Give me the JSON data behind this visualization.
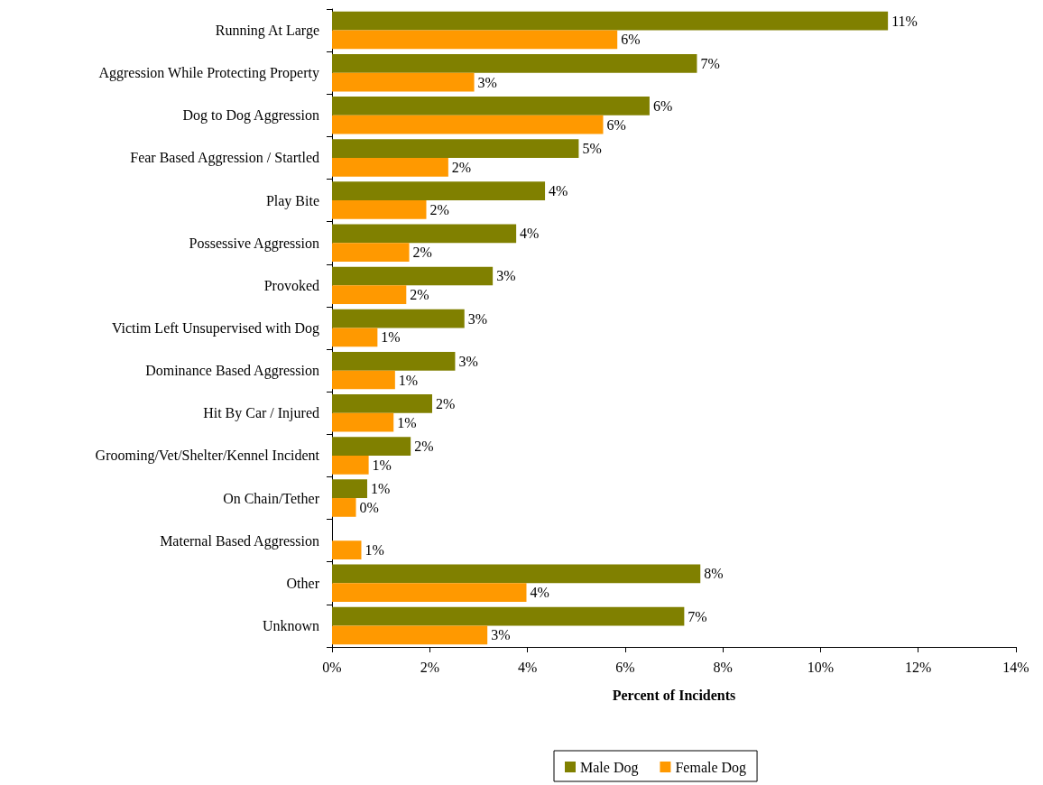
{
  "chart_data": {
    "type": "bar",
    "orientation": "horizontal",
    "xlabel": "Percent of Incidents",
    "categories": [
      "Running At Large",
      "Aggression While Protecting Property",
      "Dog to Dog Aggression",
      "Fear Based Aggression / Startled",
      "Play Bite",
      "Possessive Aggression",
      "Provoked",
      "Victim Left Unsupervised with Dog",
      "Dominance Based Aggression",
      "Hit By Car / Injured",
      "Grooming/Vet/Shelter/Kennel Incident",
      "On Chain/Tether",
      "Maternal Based Aggression",
      "Other",
      "Unknown"
    ],
    "series": [
      {
        "name": "Male Dog",
        "color": "#808000",
        "values": [
          11.38,
          7.47,
          6.5,
          5.05,
          4.36,
          3.77,
          3.29,
          2.71,
          2.52,
          2.05,
          1.61,
          0.72,
          null,
          7.54,
          7.21
        ],
        "value_labels": [
          "11%",
          "7%",
          "6%",
          "5%",
          "4%",
          "4%",
          "3%",
          "3%",
          "3%",
          "2%",
          "2%",
          "1%",
          null,
          "8%",
          "7%"
        ]
      },
      {
        "name": "Female Dog",
        "color": "#ff9900",
        "values": [
          5.84,
          2.91,
          5.55,
          2.38,
          1.93,
          1.58,
          1.52,
          0.93,
          1.29,
          1.26,
          0.75,
          0.49,
          0.6,
          3.98,
          3.18
        ],
        "value_labels": [
          "6%",
          "3%",
          "6%",
          "2%",
          "2%",
          "2%",
          "2%",
          "1%",
          "1%",
          "1%",
          "1%",
          "0%",
          "1%",
          "4%",
          "3%"
        ]
      }
    ],
    "xlim": [
      0,
      14
    ],
    "xticks": [
      {
        "value": 0,
        "label": "0%"
      },
      {
        "value": 2,
        "label": "2%"
      },
      {
        "value": 4,
        "label": "4%"
      },
      {
        "value": 6,
        "label": "6%"
      },
      {
        "value": 8,
        "label": "8%"
      },
      {
        "value": 10,
        "label": "10%"
      },
      {
        "value": 12,
        "label": "12%"
      },
      {
        "value": 14,
        "label": "14%"
      }
    ],
    "grid": false,
    "legend": "bottom"
  }
}
